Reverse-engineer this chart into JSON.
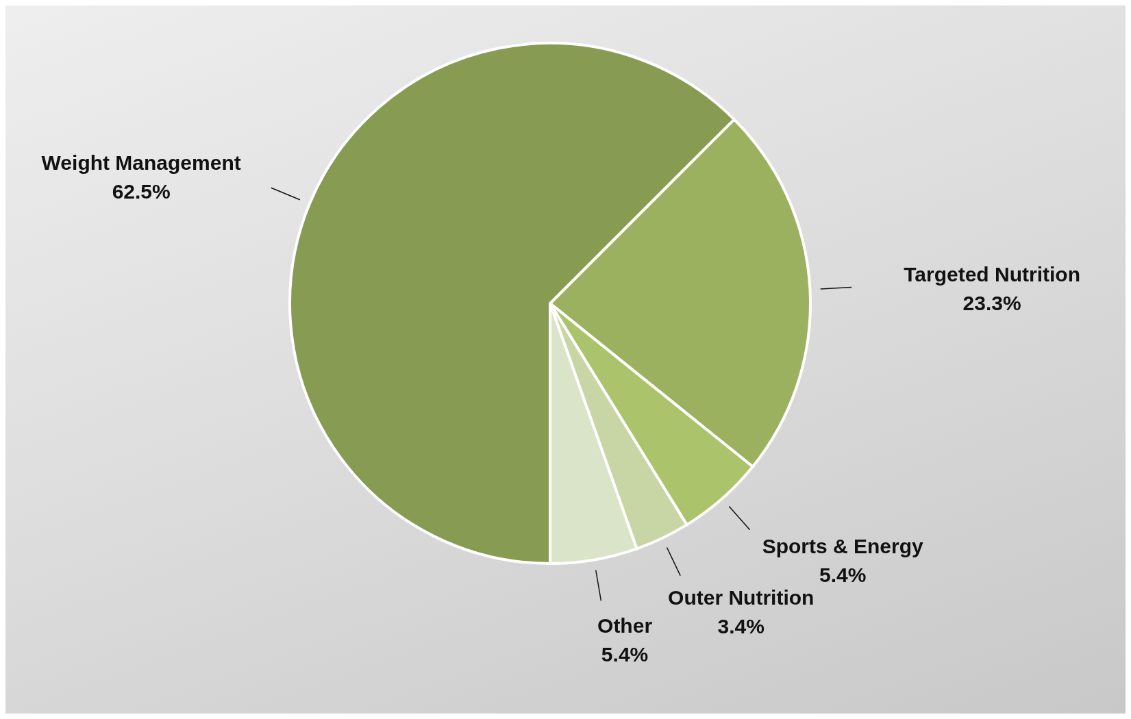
{
  "chart_data": {
    "type": "pie",
    "categories": [
      "Targeted Nutrition",
      "Sports & Energy",
      "Outer Nutrition",
      "Other",
      "Weight Management"
    ],
    "values": [
      23.3,
      5.4,
      3.4,
      5.4,
      62.5
    ],
    "value_labels": [
      "23.3%",
      "5.4%",
      "3.4%",
      "5.4%",
      "62.5%"
    ],
    "colors": [
      "#9cb160",
      "#abc46b",
      "#c8d6a5",
      "#dae4c8",
      "#889b52"
    ],
    "legend": false
  }
}
